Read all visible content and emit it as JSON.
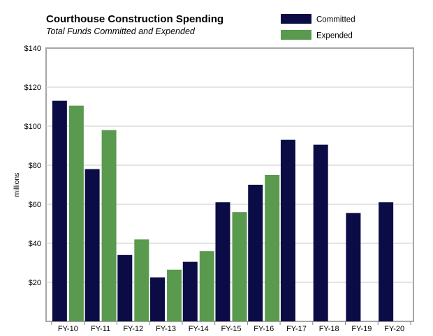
{
  "chart_data": {
    "type": "bar",
    "title": "Courthouse Construction Spending",
    "subtitle": "Total Funds Committed and Expended",
    "ylabel": "millions",
    "xlabel": "",
    "ylim": [
      0,
      140
    ],
    "ytick_values": [
      20,
      40,
      60,
      80,
      100,
      120,
      140
    ],
    "ytick_labels": [
      "$20",
      "$40",
      "$60",
      "$80",
      "$100",
      "$120",
      "$140"
    ],
    "grid": true,
    "legend_position": "top-right",
    "categories": [
      "FY-10",
      "FY-11",
      "FY-12",
      "FY-13",
      "FY-14",
      "FY-15",
      "FY-16",
      "FY-17",
      "FY-18",
      "FY-19",
      "FY-20"
    ],
    "series": [
      {
        "name": "Committed",
        "color": "#0b0b45",
        "values": [
          113,
          78,
          34,
          22.5,
          30.5,
          61,
          70,
          93,
          90.5,
          55.5,
          61
        ]
      },
      {
        "name": "Expended",
        "color": "#5a9a4e",
        "values": [
          110.5,
          98,
          42,
          26.5,
          36,
          56,
          75,
          null,
          null,
          null,
          null
        ]
      }
    ]
  }
}
